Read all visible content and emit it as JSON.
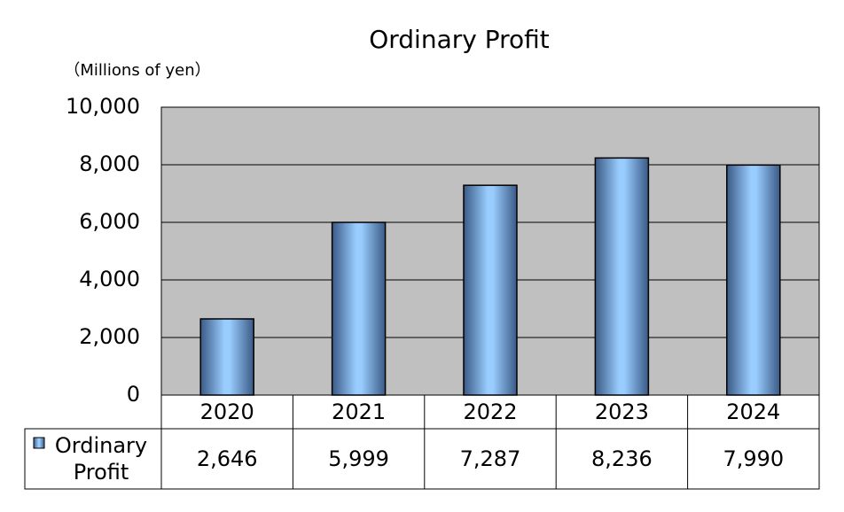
{
  "chart_data": {
    "type": "bar",
    "title": "Ordinary Profit",
    "y_label": "（Millions of yen）",
    "categories": [
      "2020",
      "2021",
      "2022",
      "2023",
      "2024"
    ],
    "series": [
      {
        "name": "Ordinary Profit",
        "color": "#99ccff",
        "values": [
          2646,
          5999,
          7287,
          8236,
          7990
        ],
        "value_labels": [
          "2,646",
          "5,999",
          "7,287",
          "8,236",
          "7,990"
        ]
      }
    ],
    "ylim": [
      0,
      10000
    ],
    "yticks": [
      0,
      {
        "value": 2000,
        "label": "2,000"
      },
      {
        "value": 4000,
        "label": "4,000"
      },
      {
        "value": 6000,
        "label": "6,000"
      },
      {
        "value": 8000,
        "label": "8,000"
      },
      {
        "value": 10000,
        "label": "10,000"
      }
    ],
    "grid": true,
    "plot_background": "#c0c0c0",
    "data_table": true
  }
}
